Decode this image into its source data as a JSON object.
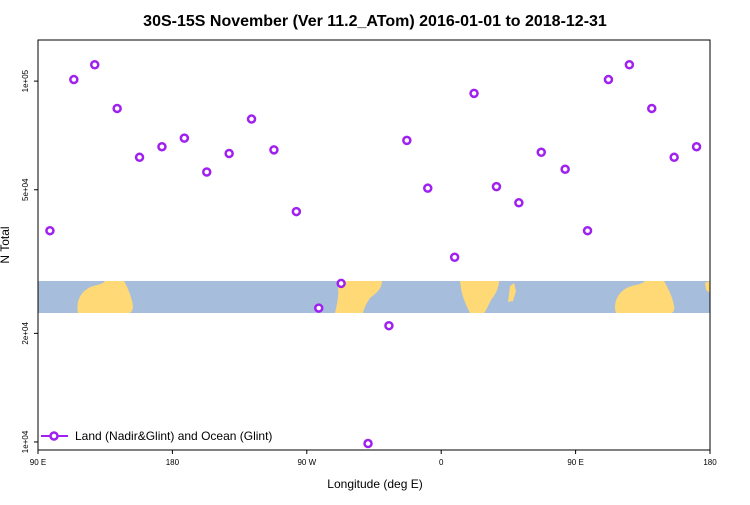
{
  "chart_data": {
    "type": "scatter",
    "title": "30S-15S November (Ver 11.2_ATom)   2016-01-01 to 2018-12-31",
    "xlabel": "Longitude (deg E)",
    "ylabel": "N Total",
    "y_scale": "log",
    "xlim": [
      90,
      540
    ],
    "ylim": [
      9500,
      130000
    ],
    "x_ticks": [
      {
        "value": 90,
        "label": "90 E"
      },
      {
        "value": 180,
        "label": "180"
      },
      {
        "value": 270,
        "label": "90 W"
      },
      {
        "value": 360,
        "label": "0"
      },
      {
        "value": 450,
        "label": "90 E"
      },
      {
        "value": 540,
        "label": "180"
      }
    ],
    "y_ticks": [
      {
        "value": 10000,
        "label": "1e+04"
      },
      {
        "value": 20000,
        "label": "2e+04"
      },
      {
        "value": 50000,
        "label": "5e+04"
      },
      {
        "value": 100000,
        "label": "1e+05"
      }
    ],
    "legend": {
      "position": "bottom-left",
      "label": "Land (Nadir&Glint) and Ocean (Glint)"
    },
    "colors": {
      "series": "#a020f0",
      "ocean": "#a6bddb",
      "land": "#fed976"
    },
    "series": [
      {
        "name": "Land (Nadir&Glint) and Ocean (Glint)",
        "points": [
          {
            "x": 98,
            "y": 38500
          },
          {
            "x": 114,
            "y": 101000
          },
          {
            "x": 128,
            "y": 111000
          },
          {
            "x": 143,
            "y": 84000
          },
          {
            "x": 158,
            "y": 61500
          },
          {
            "x": 173,
            "y": 65800
          },
          {
            "x": 188,
            "y": 69500
          },
          {
            "x": 203,
            "y": 56000
          },
          {
            "x": 218,
            "y": 63000
          },
          {
            "x": 233,
            "y": 78500
          },
          {
            "x": 248,
            "y": 64500
          },
          {
            "x": 263,
            "y": 43500
          },
          {
            "x": 278,
            "y": 23500
          },
          {
            "x": 293,
            "y": 27500
          },
          {
            "x": 311,
            "y": 9900
          },
          {
            "x": 325,
            "y": 21000
          },
          {
            "x": 337,
            "y": 68500
          },
          {
            "x": 351,
            "y": 50500
          },
          {
            "x": 369,
            "y": 32500
          },
          {
            "x": 382,
            "y": 92500
          },
          {
            "x": 397,
            "y": 51000
          },
          {
            "x": 412,
            "y": 46000
          },
          {
            "x": 427,
            "y": 63500
          },
          {
            "x": 443,
            "y": 57000
          },
          {
            "x": 458,
            "y": 38500
          },
          {
            "x": 472,
            "y": 101000
          },
          {
            "x": 486,
            "y": 111000
          },
          {
            "x": 501,
            "y": 84000
          },
          {
            "x": 516,
            "y": 61500
          },
          {
            "x": 531,
            "y": 65800
          }
        ]
      }
    ]
  }
}
